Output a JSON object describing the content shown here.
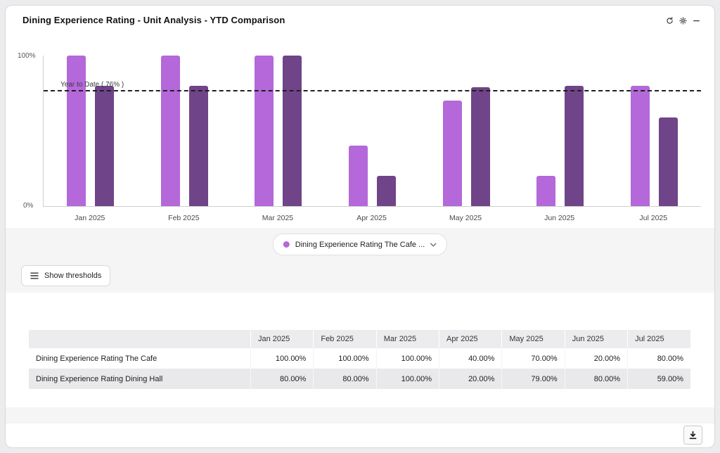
{
  "header": {
    "title": "Dining Experience Rating - Unit Analysis - YTD Comparison",
    "icons": [
      "refresh-icon",
      "gear-icon",
      "minimize-icon"
    ]
  },
  "chart_data": {
    "type": "bar",
    "categories": [
      "Jan 2025",
      "Feb 2025",
      "Mar 2025",
      "Apr 2025",
      "May 2025",
      "Jun 2025",
      "Jul 2025"
    ],
    "series": [
      {
        "name": "Dining Experience Rating The Cafe",
        "color": "#b468d9",
        "values": [
          100,
          100,
          100,
          40,
          70,
          20,
          80
        ]
      },
      {
        "name": "Dining Experience Rating Dining Hall",
        "color": "#6f4488",
        "values": [
          80,
          80,
          100,
          20,
          79,
          80,
          59
        ]
      }
    ],
    "threshold": {
      "label": "Year to Date ( 76% )",
      "value": 76
    },
    "yticks": {
      "top": "100%",
      "bottom": "0%"
    },
    "ylim": [
      0,
      100
    ],
    "grid": false,
    "legend_position": "bottom"
  },
  "legend": {
    "selected_label": "Dining Experience Rating The Cafe ...",
    "dot_color": "#b468d9",
    "chevron": "chevron-down-icon"
  },
  "controls": {
    "show_thresholds_label": "Show thresholds",
    "icon": "menu-icon"
  },
  "table": {
    "columns": [
      "",
      "Jan 2025",
      "Feb 2025",
      "Mar 2025",
      "Apr 2025",
      "May 2025",
      "Jun 2025",
      "Jul 2025"
    ],
    "rows": [
      {
        "label": "Dining Experience Rating The Cafe",
        "values": [
          "100.00%",
          "100.00%",
          "100.00%",
          "40.00%",
          "70.00%",
          "20.00%",
          "80.00%"
        ]
      },
      {
        "label": "Dining Experience Rating Dining Hall",
        "values": [
          "80.00%",
          "80.00%",
          "100.00%",
          "20.00%",
          "79.00%",
          "80.00%",
          "59.00%"
        ]
      }
    ]
  },
  "footer": {
    "download_icon": "download-icon"
  }
}
